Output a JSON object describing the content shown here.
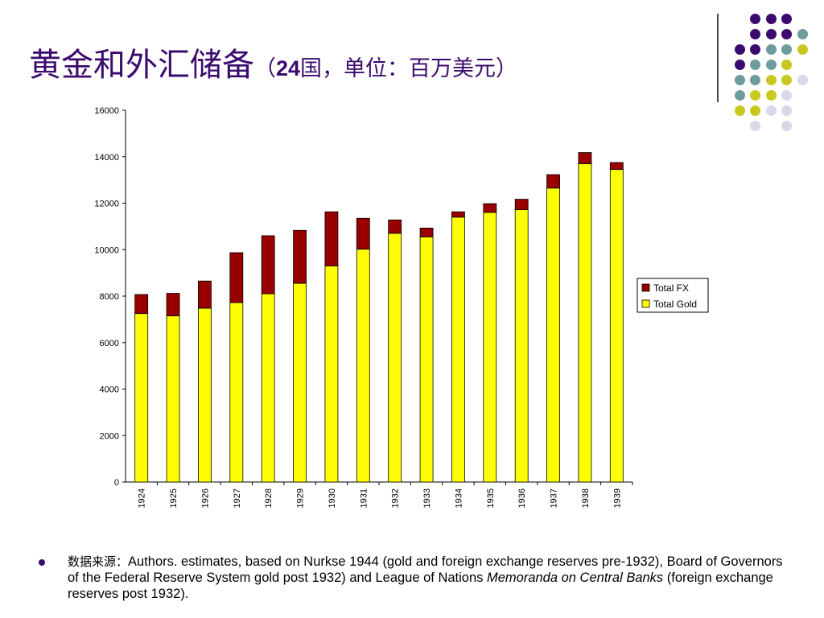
{
  "title": {
    "main": "黄金和外汇储备",
    "open": "（",
    "num": "24",
    "rest": "国，单位：百万美元）"
  },
  "decoration": {
    "colors": {
      "purple": "#3b0a6e",
      "teal": "#6e9c9c",
      "lime": "#c8c81e",
      "lavender": "#d8d8e8"
    }
  },
  "chart_data": {
    "type": "bar",
    "stacked": true,
    "categories": [
      "1924",
      "1925",
      "1926",
      "1927",
      "1928",
      "1929",
      "1930",
      "1931",
      "1932",
      "1933",
      "1934",
      "1935",
      "1936",
      "1937",
      "1938",
      "1939"
    ],
    "series": [
      {
        "name": "Total Gold",
        "color": "#ffff00",
        "values": [
          7250,
          7150,
          7480,
          7720,
          8100,
          8550,
          9300,
          10020,
          10700,
          10550,
          11400,
          11600,
          11720,
          12650,
          13700,
          13450
        ]
      },
      {
        "name": "Total FX",
        "color": "#990000",
        "values": [
          820,
          970,
          1170,
          2150,
          2500,
          2280,
          2330,
          1330,
          580,
          380,
          230,
          380,
          450,
          580,
          480,
          300
        ]
      }
    ],
    "ylim": [
      0,
      16000
    ],
    "yticks": [
      0,
      2000,
      4000,
      6000,
      8000,
      10000,
      12000,
      14000,
      16000
    ],
    "legend": {
      "position": "right",
      "entries": [
        "Total FX",
        "Total Gold"
      ]
    },
    "grid": false
  },
  "footer": {
    "source_label": "数据来源：",
    "text1": "Authors. estimates, based on Nurkse 1944 (gold and foreign exchange reserves pre-1932), Board of Governors of the Federal Reserve System  gold post 1932) and League of Nations ",
    "italic": "Memoranda on Central Banks",
    "text2": " (foreign exchange reserves post 1932)."
  }
}
